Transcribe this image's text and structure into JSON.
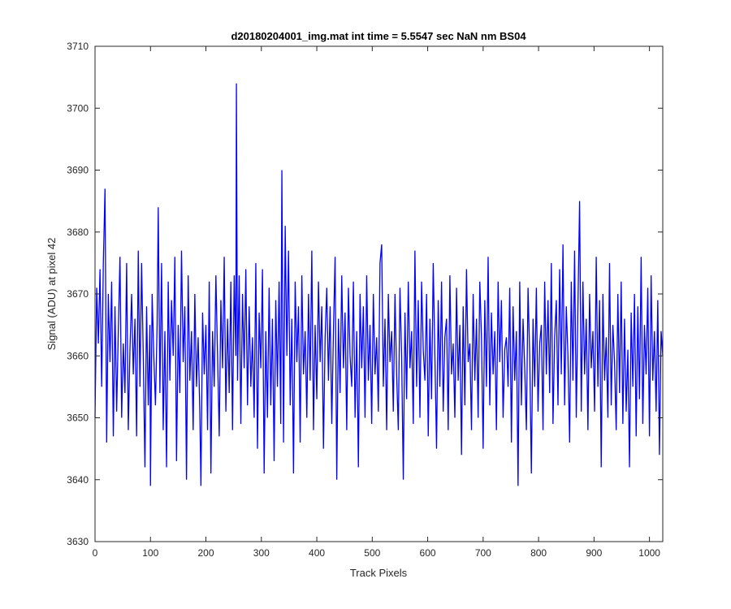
{
  "chart_data": {
    "type": "line",
    "title": "d20180204001_img.mat int time = 5.5547 sec  NaN nm BS04",
    "xlabel": "Track Pixels",
    "ylabel": "Signal (ADU) at pixel 42",
    "xlim": [
      0,
      1024
    ],
    "ylim": [
      3630,
      3710
    ],
    "xticks": [
      0,
      100,
      200,
      300,
      400,
      500,
      600,
      700,
      800,
      900,
      1000
    ],
    "yticks": [
      3630,
      3640,
      3650,
      3660,
      3670,
      3680,
      3690,
      3700,
      3710
    ],
    "grid": false,
    "line_color": "#0000ff",
    "series": [
      {
        "x": [
          0,
          3,
          6,
          9,
          12,
          15,
          18,
          21,
          24,
          27,
          30,
          33,
          36,
          39,
          42,
          45,
          48,
          51,
          54,
          57,
          60,
          63,
          66,
          69,
          72,
          75,
          78,
          81,
          84,
          87,
          90,
          93,
          96,
          99,
          100,
          103,
          106,
          109,
          112,
          114,
          117,
          120,
          123,
          126,
          129,
          132,
          135,
          138,
          141,
          144,
          147,
          150,
          153,
          156,
          159,
          162,
          165,
          168,
          171,
          174,
          177,
          180,
          183,
          186,
          189,
          191,
          194,
          197,
          200,
          203,
          206,
          209,
          212,
          215,
          218,
          221,
          224,
          227,
          230,
          233,
          236,
          239,
          242,
          245,
          248,
          251,
          254,
          255,
          257,
          260,
          263,
          266,
          269,
          272,
          275,
          278,
          281,
          284,
          287,
          290,
          293,
          296,
          299,
          302,
          305,
          308,
          311,
          314,
          317,
          320,
          323,
          326,
          329,
          332,
          335,
          337,
          340,
          343,
          346,
          349,
          352,
          355,
          358,
          361,
          364,
          367,
          370,
          373,
          376,
          379,
          382,
          385,
          388,
          391,
          394,
          397,
          400,
          403,
          406,
          409,
          412,
          415,
          418,
          421,
          424,
          427,
          430,
          433,
          436,
          439,
          442,
          445,
          448,
          451,
          454,
          457,
          460,
          463,
          466,
          469,
          472,
          475,
          478,
          481,
          484,
          487,
          490,
          493,
          496,
          499,
          502,
          505,
          508,
          511,
          514,
          517,
          520,
          523,
          526,
          529,
          532,
          535,
          538,
          541,
          544,
          547,
          550,
          553,
          556,
          559,
          562,
          565,
          568,
          571,
          574,
          577,
          580,
          583,
          586,
          589,
          592,
          595,
          598,
          601,
          604,
          607,
          610,
          613,
          616,
          619,
          622,
          625,
          628,
          631,
          634,
          637,
          640,
          643,
          646,
          649,
          652,
          655,
          658,
          661,
          664,
          667,
          670,
          673,
          676,
          679,
          682,
          685,
          688,
          691,
          694,
          697,
          700,
          703,
          706,
          709,
          712,
          715,
          718,
          721,
          724,
          727,
          730,
          733,
          736,
          739,
          742,
          745,
          748,
          751,
          754,
          757,
          760,
          763,
          766,
          769,
          772,
          775,
          778,
          781,
          784,
          787,
          790,
          793,
          796,
          799,
          802,
          805,
          808,
          811,
          814,
          817,
          820,
          823,
          826,
          829,
          832,
          835,
          838,
          841,
          844,
          847,
          850,
          853,
          856,
          859,
          862,
          865,
          868,
          871,
          874,
          877,
          880,
          883,
          886,
          889,
          892,
          895,
          898,
          901,
          904,
          907,
          910,
          913,
          916,
          919,
          922,
          925,
          928,
          931,
          934,
          937,
          940,
          943,
          946,
          949,
          952,
          955,
          958,
          961,
          964,
          967,
          970,
          973,
          976,
          979,
          982,
          985,
          988,
          991,
          994,
          997,
          1000,
          1003,
          1006,
          1009,
          1012,
          1015,
          1018,
          1021,
          1024
        ],
        "y": [
          3650,
          3671,
          3662,
          3674,
          3655,
          3675,
          3687,
          3646,
          3670,
          3659,
          3672,
          3647,
          3668,
          3651,
          3664,
          3676,
          3650,
          3662,
          3654,
          3675,
          3648,
          3661,
          3670,
          3657,
          3666,
          3647,
          3677,
          3655,
          3675,
          3660,
          3642,
          3668,
          3652,
          3665,
          3639,
          3670,
          3660,
          3652,
          3665,
          3684,
          3654,
          3675,
          3648,
          3664,
          3642,
          3672,
          3656,
          3669,
          3660,
          3676,
          3643,
          3665,
          3654,
          3677,
          3659,
          3668,
          3640,
          3673,
          3656,
          3664,
          3648,
          3670,
          3655,
          3663,
          3651,
          3639,
          3667,
          3657,
          3665,
          3648,
          3672,
          3641,
          3664,
          3655,
          3673,
          3660,
          3647,
          3669,
          3658,
          3676,
          3651,
          3666,
          3654,
          3672,
          3648,
          3673,
          3660,
          3704,
          3656,
          3673,
          3649,
          3670,
          3658,
          3674,
          3652,
          3668,
          3655,
          3663,
          3650,
          3675,
          3645,
          3667,
          3658,
          3674,
          3641,
          3664,
          3650,
          3671,
          3652,
          3666,
          3643,
          3669,
          3655,
          3672,
          3649,
          3690,
          3646,
          3681,
          3660,
          3677,
          3652,
          3666,
          3641,
          3672,
          3659,
          3668,
          3646,
          3673,
          3657,
          3664,
          3650,
          3670,
          3656,
          3677,
          3648,
          3665,
          3653,
          3672,
          3659,
          3668,
          3645,
          3663,
          3671,
          3656,
          3668,
          3649,
          3664,
          3676,
          3640,
          3666,
          3654,
          3673,
          3658,
          3667,
          3648,
          3671,
          3660,
          3655,
          3672,
          3650,
          3664,
          3642,
          3670,
          3658,
          3668,
          3650,
          3673,
          3656,
          3665,
          3649,
          3670,
          3657,
          3663,
          3651,
          3675,
          3678,
          3655,
          3666,
          3648,
          3670,
          3659,
          3664,
          3651,
          3670,
          3657,
          3648,
          3671,
          3660,
          3640,
          3667,
          3653,
          3672,
          3658,
          3664,
          3649,
          3677,
          3655,
          3669,
          3650,
          3672,
          3661,
          3656,
          3670,
          3647,
          3666,
          3653,
          3675,
          3660,
          3645,
          3669,
          3655,
          3672,
          3651,
          3663,
          3666,
          3648,
          3673,
          3657,
          3662,
          3650,
          3671,
          3656,
          3665,
          3644,
          3668,
          3652,
          3674,
          3659,
          3662,
          3648,
          3670,
          3656,
          3666,
          3650,
          3672,
          3663,
          3645,
          3669,
          3655,
          3676,
          3652,
          3667,
          3657,
          3664,
          3648,
          3672,
          3659,
          3669,
          3650,
          3661,
          3663,
          3655,
          3671,
          3646,
          3668,
          3656,
          3664,
          3639,
          3672,
          3652,
          3666,
          3658,
          3648,
          3671,
          3660,
          3641,
          3666,
          3655,
          3671,
          3651,
          3662,
          3665,
          3648,
          3672,
          3657,
          3669,
          3654,
          3675,
          3649,
          3663,
          3669,
          3652,
          3674,
          3657,
          3678,
          3652,
          3668,
          3660,
          3646,
          3672,
          3656,
          3677,
          3650,
          3668,
          3685,
          3651,
          3672,
          3657,
          3666,
          3648,
          3670,
          3658,
          3664,
          3651,
          3676,
          3655,
          3669,
          3642,
          3670,
          3656,
          3663,
          3650,
          3675,
          3652,
          3665,
          3659,
          3648,
          3670,
          3654,
          3672,
          3649,
          3666,
          3651,
          3661,
          3642,
          3667,
          3655,
          3670,
          3647,
          3668,
          3653,
          3676,
          3649,
          3665,
          3657,
          3671,
          3647,
          3673,
          3656,
          3664,
          3651,
          3669,
          3644,
          3664,
          3660
        ]
      }
    ]
  }
}
